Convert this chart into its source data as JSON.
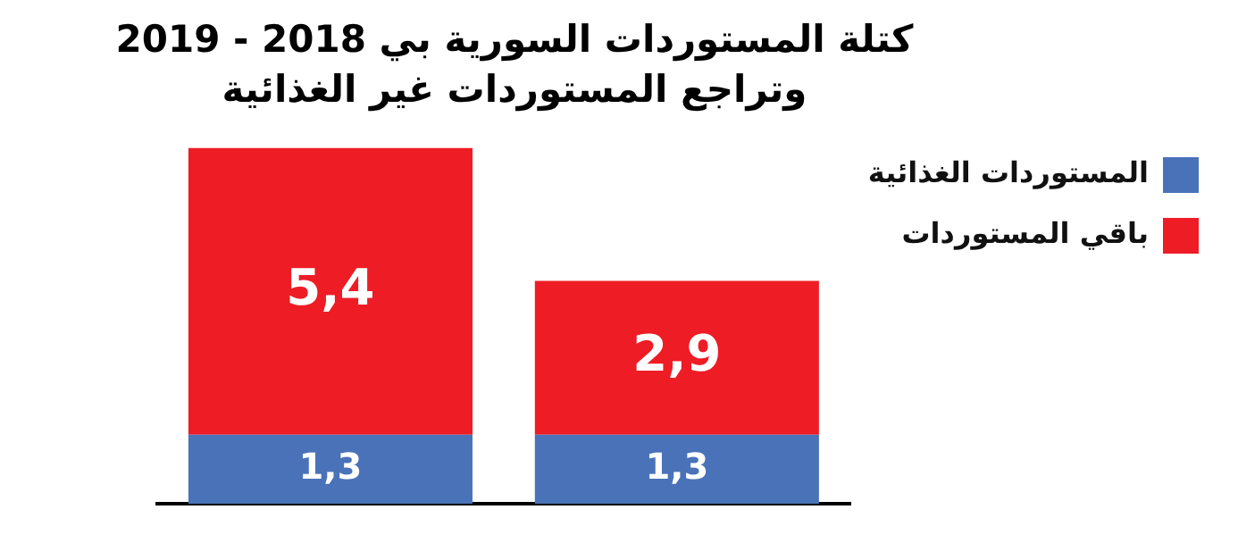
{
  "chart_data": {
    "type": "bar",
    "title": "كتلة المستوردات السورية بي 2018 - 2019",
    "subtitle": "وتراجع المستوردات غير الغذائية",
    "categories": [
      null,
      null
    ],
    "stacked": true,
    "legend": "right",
    "series": [
      {
        "name": "المستوردات الغذائية",
        "color": "#4a72b8",
        "values": [
          1.3,
          1.3
        ],
        "value_labels": [
          "1,3",
          "1,3"
        ]
      },
      {
        "name": "باقي المستوردات",
        "color": "#ee1c25",
        "values": [
          5.4,
          2.9
        ],
        "value_labels": [
          "5,4",
          "2,9"
        ]
      }
    ]
  }
}
